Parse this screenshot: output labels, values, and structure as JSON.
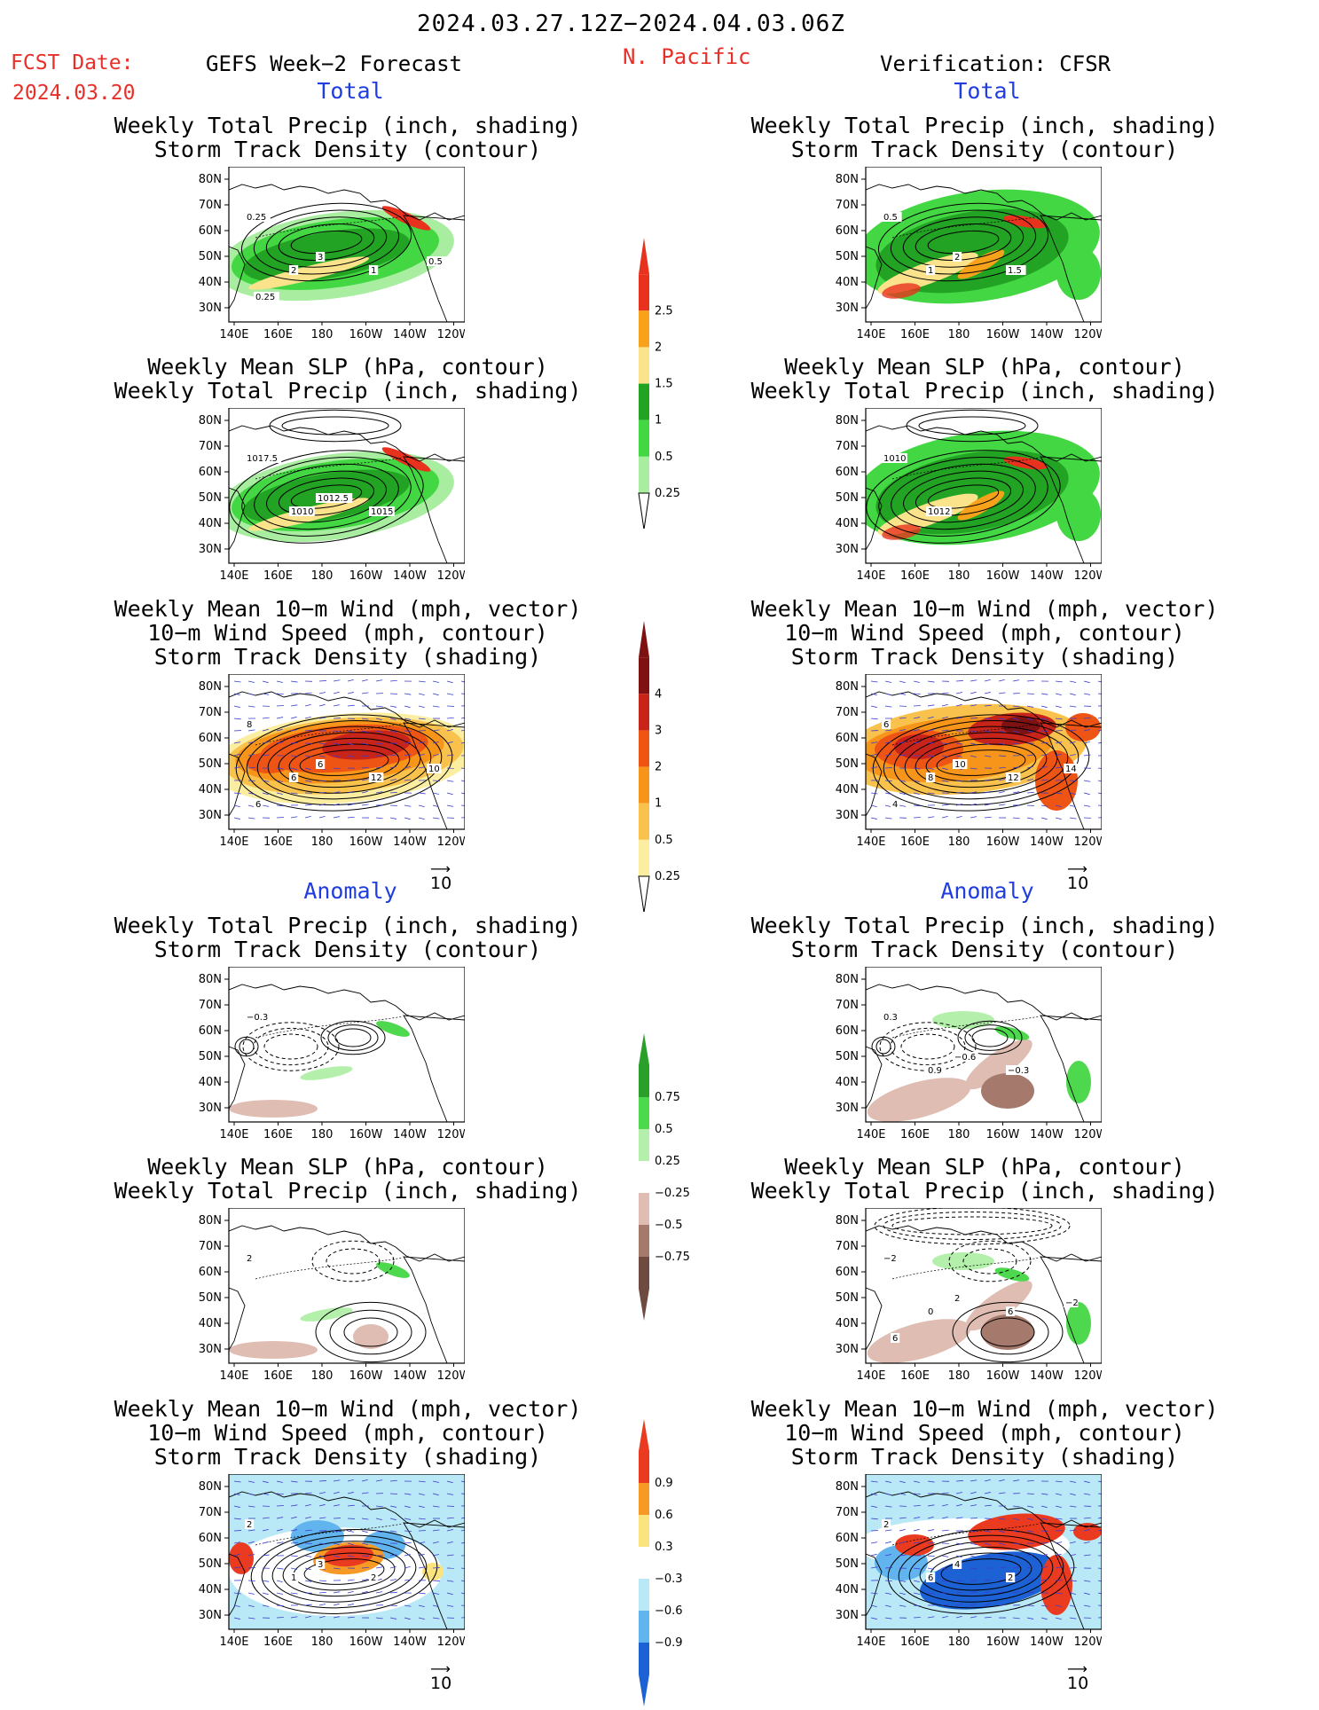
{
  "header": {
    "date_range": "2024.03.27.12Z−2024.04.03.06Z",
    "fcst_label": "FCST Date:",
    "fcst_date": "2024.03.20",
    "forecast_title": "GEFS Week−2 Forecast",
    "region": "N. Pacific",
    "verification": "Verification: CFSR"
  },
  "sections": {
    "total": "Total",
    "anomaly": "Anomaly"
  },
  "titles": {
    "precip_storm": [
      "Weekly Total Precip (inch, shading)",
      "Storm Track Density (contour)"
    ],
    "slp_precip": [
      "Weekly Mean SLP (hPa, contour)",
      "Weekly Total Precip (inch, shading)"
    ],
    "wind_storm": [
      "Weekly Mean 10−m Wind (mph, vector)",
      "10−m Wind Speed (mph, contour)",
      "Storm Track Density (shading)"
    ]
  },
  "axes": {
    "lat": [
      "80N",
      "70N",
      "60N",
      "50N",
      "40N",
      "30N"
    ],
    "lon": [
      "140E",
      "160E",
      "180",
      "160W",
      "140W",
      "120W"
    ]
  },
  "vector_ref": "10",
  "colorbars": {
    "precip_total": {
      "labels": [
        "2.5",
        "2",
        "1.5",
        "1",
        "0.5",
        "0.25"
      ],
      "colors": [
        "#e8321e",
        "#f7a21a",
        "#fbe38b",
        "#23a323",
        "#43d843",
        "#a8eda0"
      ]
    },
    "storm_total": {
      "labels": [
        "4",
        "3",
        "2",
        "1",
        "0.5",
        "0.25"
      ],
      "colors": [
        "#7e1111",
        "#c8241a",
        "#ee5515",
        "#f7951a",
        "#f9c24c",
        "#fbeea0"
      ]
    },
    "precip_anom": {
      "labels": [
        "0.75",
        "0.5",
        "0.25",
        "−0.25",
        "−0.5",
        "−0.75"
      ],
      "colors": [
        "#2aa02a",
        "#4dd84d",
        "#b4f0ab",
        "#ffffff",
        "#dfbdb2",
        "#a6796d",
        "#6e4a40"
      ]
    },
    "storm_anom": {
      "labels": [
        "0.9",
        "0.6",
        "0.3",
        "−0.3",
        "−0.6",
        "−0.9"
      ],
      "colors": [
        "#ea3b20",
        "#f79a25",
        "#fbe37d",
        "#ffffff",
        "#b9e8f7",
        "#62b4ee",
        "#1c62d4"
      ]
    }
  },
  "contour_labels": {
    "p1": [
      "0.25",
      "2",
      "3",
      "1",
      "0.5",
      "0.25"
    ],
    "p2": [
      "0.5",
      "1",
      "2",
      "1.5"
    ],
    "p3": [
      "1017.5",
      "1010",
      "1012.5",
      "1015"
    ],
    "p4": [
      "1010",
      "1012"
    ],
    "p5": [
      "8",
      "6",
      "6",
      "12",
      "10",
      "6"
    ],
    "p6": [
      "6",
      "8",
      "10",
      "12",
      "14",
      "4"
    ],
    "p7": [
      "−0.3"
    ],
    "p8": [
      "0.3",
      "0.9",
      "−0.6",
      "−0.3"
    ],
    "p9": [
      "2"
    ],
    "p10": [
      "−2",
      "0",
      "2",
      "6",
      "−2",
      "6"
    ],
    "p11": [
      "2",
      "1",
      "3",
      "2"
    ],
    "p12": [
      "2",
      "6",
      "4",
      "2"
    ]
  }
}
